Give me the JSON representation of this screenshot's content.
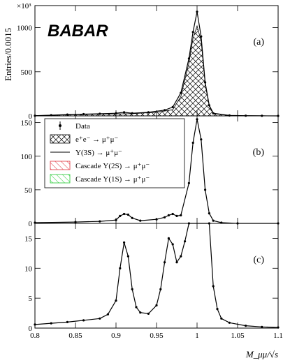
{
  "logo_text": "BABAR",
  "ylabel": "Entries/0.0015",
  "y_multiplier": "×10³",
  "xlabel": "M_μμ/√s",
  "chart_data": [
    {
      "type": "line",
      "panel": "(a)",
      "xlim": [
        0.8,
        1.1
      ],
      "ylim": [
        0,
        1250
      ],
      "yticks": [
        "0",
        "500",
        "1000"
      ],
      "ytick_values": [
        0,
        500,
        1000
      ],
      "series": [
        {
          "name": "Data",
          "x": [
            0.8,
            0.82,
            0.84,
            0.86,
            0.88,
            0.9,
            0.91,
            0.92,
            0.94,
            0.96,
            0.97,
            0.98,
            0.99,
            0.995,
            1.0,
            1.005,
            1.01,
            1.015,
            1.02,
            1.04,
            1.06,
            1.08,
            1.1
          ],
          "y": [
            2,
            8,
            15,
            20,
            24,
            30,
            40,
            30,
            40,
            65,
            100,
            260,
            650,
            950,
            1180,
            900,
            380,
            120,
            30,
            5,
            2,
            1,
            0
          ]
        },
        {
          "name": "e+e- → μ+μ-",
          "x": [
            0.8,
            0.84,
            0.88,
            0.92,
            0.95,
            0.97,
            0.98,
            0.99,
            0.995,
            1.0,
            1.005,
            1.01,
            1.015,
            1.02,
            1.04,
            1.1
          ],
          "y": [
            2,
            12,
            20,
            25,
            40,
            70,
            220,
            600,
            880,
            1020,
            850,
            360,
            110,
            25,
            3,
            0
          ]
        }
      ]
    },
    {
      "type": "line",
      "panel": "(b)",
      "xlim": [
        0.8,
        1.1
      ],
      "ylim": [
        0,
        160
      ],
      "yticks": [
        "0",
        "50",
        "100",
        "150"
      ],
      "ytick_values": [
        0,
        50,
        100,
        150
      ],
      "legend": [
        {
          "label": "Data",
          "style": "marker"
        },
        {
          "label": "e⁺e⁻ → μ⁺μ⁻",
          "style": "crosshatch"
        },
        {
          "label": "Υ(3S) → μ⁺μ⁻",
          "style": "line"
        },
        {
          "label": "Cascade  Υ(2S) → μ⁺μ⁻",
          "style": "red-hatch"
        },
        {
          "label": "Cascade  Υ(1S) → μ⁺μ⁻",
          "style": "green-hatch"
        }
      ],
      "series": [
        {
          "name": "Data",
          "x": [
            0.8,
            0.85,
            0.88,
            0.9,
            0.905,
            0.91,
            0.915,
            0.92,
            0.93,
            0.95,
            0.96,
            0.965,
            0.97,
            0.975,
            0.98,
            0.99,
            0.995,
            1.0,
            1.005,
            1.01,
            1.015,
            1.02,
            1.03,
            1.05,
            1.1
          ],
          "y": [
            1,
            2,
            3,
            5,
            11,
            14,
            13,
            8,
            4,
            6,
            9,
            12,
            14,
            11,
            12,
            60,
            120,
            155,
            125,
            50,
            15,
            4,
            1,
            0,
            0
          ]
        }
      ]
    },
    {
      "type": "line",
      "panel": "(c)",
      "xlim": [
        0.8,
        1.1
      ],
      "ylim": [
        0,
        17.5
      ],
      "yticks": [
        "0",
        "5",
        "10",
        "15"
      ],
      "ytick_values": [
        0,
        5,
        10,
        15
      ],
      "xticks": [
        "0.8",
        "0.85",
        "0.9",
        "0.95",
        "1",
        "1.05",
        "1.1"
      ],
      "xtick_values": [
        0.8,
        0.85,
        0.9,
        0.95,
        1.0,
        1.05,
        1.1
      ],
      "series": [
        {
          "name": "Data",
          "x": [
            0.8,
            0.82,
            0.84,
            0.86,
            0.88,
            0.89,
            0.9,
            0.905,
            0.91,
            0.915,
            0.92,
            0.925,
            0.93,
            0.94,
            0.95,
            0.955,
            0.96,
            0.965,
            0.97,
            0.975,
            0.98,
            0.985,
            0.99,
            1.015,
            1.02,
            1.025,
            1.03,
            1.04,
            1.06,
            1.08,
            1.1
          ],
          "y": [
            0.6,
            0.8,
            1.0,
            1.3,
            1.6,
            2.3,
            4.6,
            10.0,
            14.3,
            12.0,
            6.5,
            3.5,
            2.6,
            2.4,
            3.8,
            6.5,
            11.0,
            15.0,
            14.0,
            11.0,
            12.0,
            14.5,
            17.5,
            17.5,
            7.0,
            3.2,
            1.6,
            0.9,
            0.4,
            0.2,
            0.1
          ]
        }
      ]
    }
  ]
}
